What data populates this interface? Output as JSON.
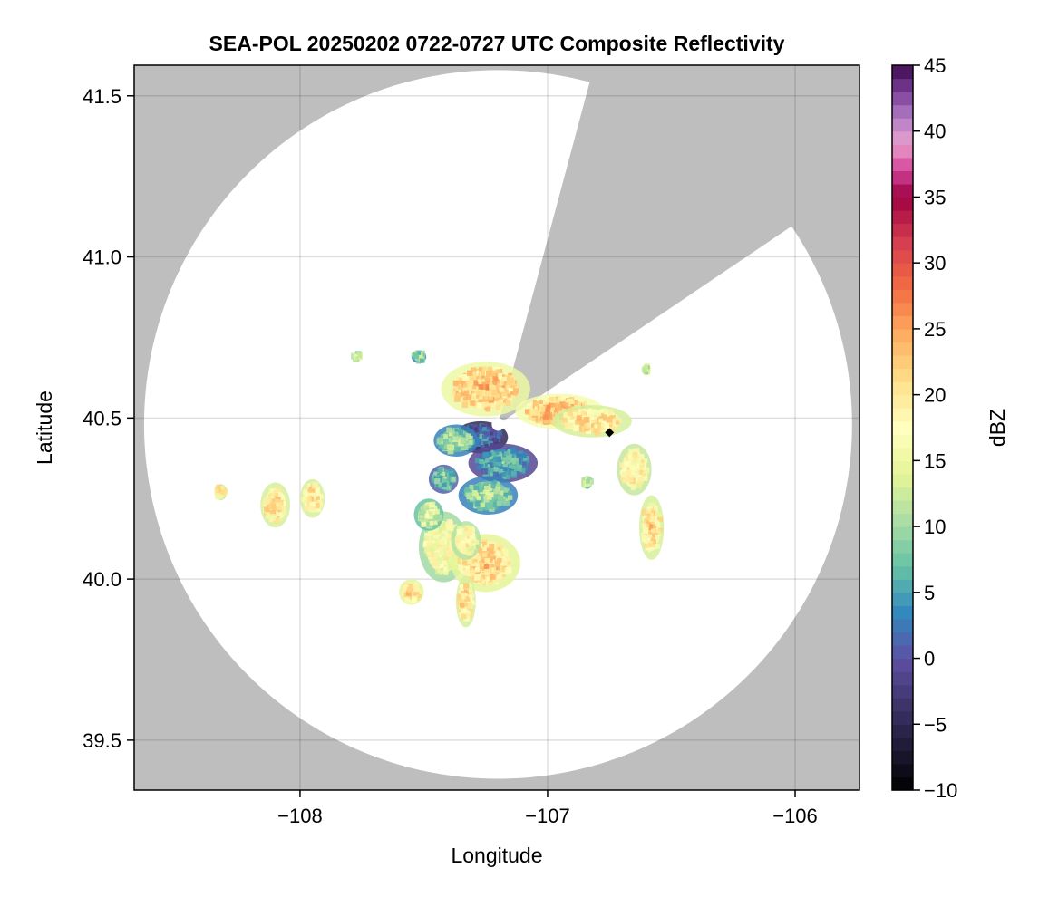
{
  "chart_data": {
    "type": "heatmap",
    "title": "SEA-POL 20250202 0722-0727 UTC Composite Reflectivity",
    "xlabel": "Longitude",
    "ylabel": "Latitude",
    "xlim": [
      -108.67,
      -105.74
    ],
    "ylim": [
      39.345,
      41.595
    ],
    "xticks": [
      -108,
      -107,
      -106
    ],
    "xtick_labels": [
      "−108",
      "−107",
      "−106"
    ],
    "yticks": [
      39.5,
      40.0,
      40.5,
      41.0,
      41.5
    ],
    "ytick_labels": [
      "39.5",
      "40.0",
      "40.5",
      "41.0",
      "41.5"
    ],
    "grid": true,
    "background_color": "#bebebe",
    "coverage_color": "#ffffff",
    "radar_site": {
      "lon": -107.2,
      "lat": 40.48
    },
    "coverage_range_deg": {
      "lon": 1.43,
      "lat": 1.1
    },
    "blocked_sectors_deg_from_north": [
      [
        15,
        56
      ]
    ],
    "colormap": "Spectral_r",
    "colorbar": {
      "label": "dBZ",
      "range": [
        -10,
        45
      ],
      "ticks": [
        -10,
        -5,
        0,
        5,
        10,
        15,
        20,
        25,
        30,
        35,
        40,
        45
      ],
      "tick_labels": [
        "−10",
        "−5",
        "0",
        "5",
        "10",
        "15",
        "20",
        "25",
        "30",
        "35",
        "40",
        "45"
      ],
      "levels": 55
    },
    "marker": {
      "lon": -106.75,
      "lat": 40.455,
      "shape": "diamond",
      "color": "#000000"
    },
    "echo_cells": [
      {
        "lon": -107.25,
        "lat": 40.59,
        "rlon": 0.18,
        "rlat": 0.085,
        "dbz": 24
      },
      {
        "lon": -106.95,
        "lat": 40.52,
        "rlon": 0.18,
        "rlat": 0.055,
        "dbz": 25
      },
      {
        "lon": -106.82,
        "lat": 40.49,
        "rlon": 0.16,
        "rlat": 0.05,
        "dbz": 22
      },
      {
        "lon": -106.65,
        "lat": 40.34,
        "rlon": 0.07,
        "rlat": 0.08,
        "dbz": 21
      },
      {
        "lon": -106.58,
        "lat": 40.16,
        "rlon": 0.05,
        "rlat": 0.1,
        "dbz": 22
      },
      {
        "lon": -107.27,
        "lat": 40.44,
        "rlon": 0.11,
        "rlat": 0.05,
        "dbz": 4
      },
      {
        "lon": -107.18,
        "lat": 40.36,
        "rlon": 0.14,
        "rlat": 0.06,
        "dbz": 8
      },
      {
        "lon": -107.42,
        "lat": 40.31,
        "rlon": 0.06,
        "rlat": 0.045,
        "dbz": 10
      },
      {
        "lon": -107.24,
        "lat": 40.26,
        "rlon": 0.12,
        "rlat": 0.06,
        "dbz": 12
      },
      {
        "lon": -107.37,
        "lat": 40.43,
        "rlon": 0.09,
        "rlat": 0.05,
        "dbz": 12
      },
      {
        "lon": -107.42,
        "lat": 40.1,
        "rlon": 0.1,
        "rlat": 0.11,
        "dbz": 19
      },
      {
        "lon": -107.25,
        "lat": 40.05,
        "rlon": 0.14,
        "rlat": 0.09,
        "dbz": 23
      },
      {
        "lon": -107.33,
        "lat": 40.12,
        "rlon": 0.06,
        "rlat": 0.06,
        "dbz": 20
      },
      {
        "lon": -107.33,
        "lat": 39.93,
        "rlon": 0.04,
        "rlat": 0.08,
        "dbz": 22
      },
      {
        "lon": -107.55,
        "lat": 39.96,
        "rlon": 0.05,
        "rlat": 0.04,
        "dbz": 23
      },
      {
        "lon": -107.48,
        "lat": 40.2,
        "rlon": 0.06,
        "rlat": 0.05,
        "dbz": 16
      },
      {
        "lon": -108.1,
        "lat": 40.23,
        "rlon": 0.06,
        "rlat": 0.07,
        "dbz": 22
      },
      {
        "lon": -107.95,
        "lat": 40.25,
        "rlon": 0.05,
        "rlat": 0.06,
        "dbz": 22
      },
      {
        "lon": -108.32,
        "lat": 40.27,
        "rlon": 0.025,
        "rlat": 0.025,
        "dbz": 21
      },
      {
        "lon": -107.52,
        "lat": 40.69,
        "rlon": 0.03,
        "rlat": 0.02,
        "dbz": 12
      },
      {
        "lon": -107.77,
        "lat": 40.69,
        "rlon": 0.02,
        "rlat": 0.015,
        "dbz": 16
      },
      {
        "lon": -106.84,
        "lat": 40.3,
        "rlon": 0.02,
        "rlat": 0.02,
        "dbz": 14
      },
      {
        "lon": -106.6,
        "lat": 40.65,
        "rlon": 0.015,
        "rlat": 0.015,
        "dbz": 14
      }
    ]
  }
}
